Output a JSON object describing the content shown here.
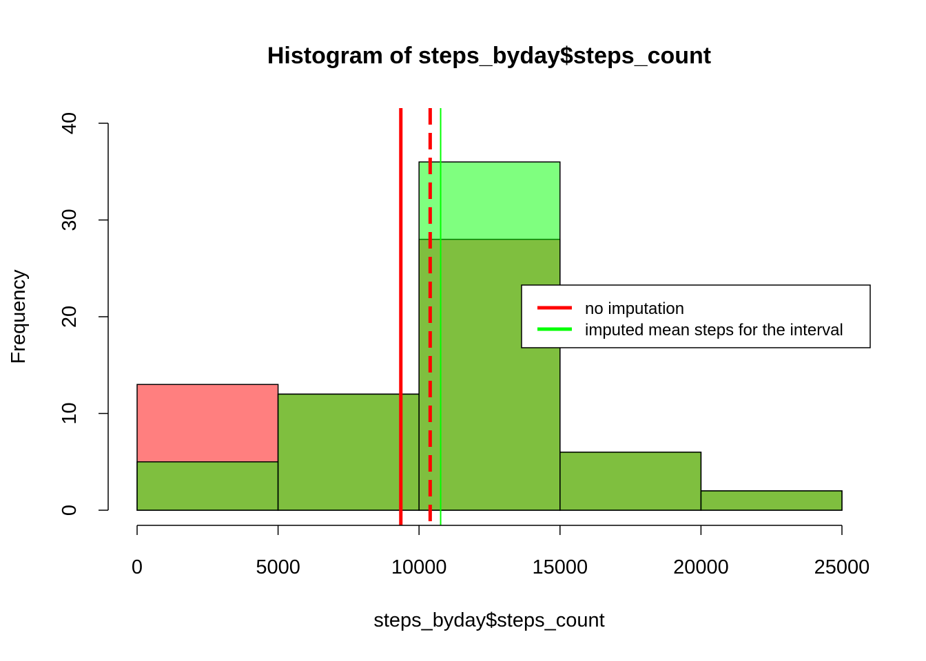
{
  "chart_data": {
    "type": "bar",
    "title": "Histogram of steps_byday$steps_count",
    "xlabel": "steps_byday$steps_count",
    "ylabel": "Frequency",
    "bins": [
      [
        0,
        5000
      ],
      [
        5000,
        10000
      ],
      [
        10000,
        15000
      ],
      [
        15000,
        20000
      ],
      [
        20000,
        25000
      ]
    ],
    "series": [
      {
        "name": "no imputation",
        "values": [
          13,
          12,
          28,
          6,
          2
        ],
        "fill": "#FF0000",
        "opacity": 0.5
      },
      {
        "name": "imputed mean steps for the interval",
        "values": [
          5,
          12,
          36,
          6,
          2
        ],
        "fill": "#00FF00",
        "opacity": 0.5
      }
    ],
    "vlines": [
      {
        "x": 9354,
        "color": "#FF0000",
        "style": "solid"
      },
      {
        "x": 10395,
        "color": "#FF0000",
        "style": "dashed"
      },
      {
        "x": 10766,
        "color": "#00FF00",
        "style": "solid"
      }
    ],
    "xlim": [
      0,
      25000
    ],
    "ylim": [
      0,
      40
    ],
    "xticks": [
      "0",
      "5000",
      "10000",
      "15000",
      "20000",
      "25000"
    ],
    "yticks": [
      "0",
      "10",
      "20",
      "30",
      "40"
    ],
    "legend": {
      "position": "right",
      "entries": [
        {
          "label": "no imputation",
          "color": "#FF0000"
        },
        {
          "label": "imputed mean steps for the interval",
          "color": "#00FF00"
        }
      ]
    }
  }
}
